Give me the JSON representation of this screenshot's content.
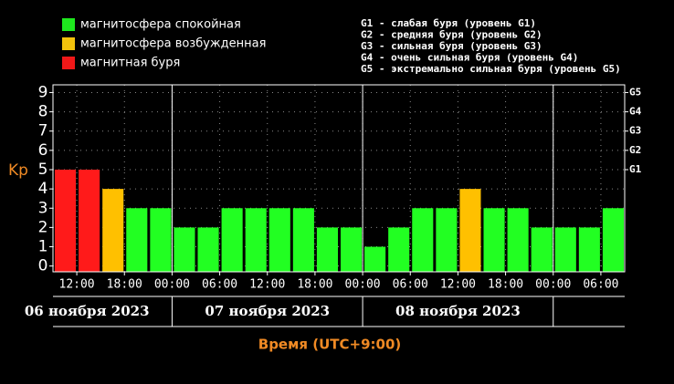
{
  "chart_data": {
    "type": "bar",
    "legend": [
      {
        "label": "магнитосфера спокойная",
        "color": "#1ee81e"
      },
      {
        "label": "магнитосфера возбужденная",
        "color": "#f2c20c"
      },
      {
        "label": "магнитная буря",
        "color": "#f01818"
      }
    ],
    "notes": [
      "G1 - слабая буря (уровень G1)",
      "G2 - средняя буря (уровень G2)",
      "G3 - сильная буря (уровень G3)",
      "G4 - очень сильная буря (уровень G4)",
      "G5 - экстремально сильная буря (уровень G5)"
    ],
    "ylabel": "Kp",
    "xlabel": "Время (UTC+9:00)",
    "values": [
      5,
      5,
      4,
      3,
      3,
      2,
      2,
      3,
      3,
      3,
      3,
      2,
      2,
      1,
      2,
      3,
      3,
      4,
      3,
      3,
      2,
      2,
      2,
      3
    ],
    "colors": [
      "#ff1a1a",
      "#ff1a1a",
      "#ffc000",
      "#22ff22",
      "#22ff22",
      "#22ff22",
      "#22ff22",
      "#22ff22",
      "#22ff22",
      "#22ff22",
      "#22ff22",
      "#22ff22",
      "#22ff22",
      "#22ff22",
      "#22ff22",
      "#22ff22",
      "#22ff22",
      "#ffc000",
      "#22ff22",
      "#22ff22",
      "#22ff22",
      "#22ff22",
      "#22ff22",
      "#22ff22"
    ],
    "xlim": [
      0,
      24
    ],
    "xticks": [
      {
        "value": 1,
        "label": "12:00"
      },
      {
        "value": 3,
        "label": "18:00"
      },
      {
        "value": 5,
        "label": "00:00"
      },
      {
        "value": 7,
        "label": "06:00"
      },
      {
        "value": 9,
        "label": "12:00"
      },
      {
        "value": 11,
        "label": "18:00"
      },
      {
        "value": 13,
        "label": "00:00"
      },
      {
        "value": 15,
        "label": "06:00"
      },
      {
        "value": 17,
        "label": "12:00"
      },
      {
        "value": 19,
        "label": "18:00"
      },
      {
        "value": 21,
        "label": "00:00"
      },
      {
        "value": 23,
        "label": "06:00"
      }
    ],
    "days": [
      {
        "label": "06 ноября 2023",
        "from": 0,
        "to": 5
      },
      {
        "label": "07 ноября 2023",
        "from": 5,
        "to": 13
      },
      {
        "label": "08 ноября 2023",
        "from": 13,
        "to": 21
      }
    ],
    "ylim": [
      -0.3,
      9.4
    ],
    "yticks": [
      0,
      1,
      2,
      3,
      4,
      5,
      6,
      7,
      8,
      9
    ],
    "y2ticks": [
      {
        "value": 5,
        "label": "G1"
      },
      {
        "value": 6,
        "label": "G2"
      },
      {
        "value": 7,
        "label": "G3"
      },
      {
        "value": 8,
        "label": "G4"
      },
      {
        "value": 9,
        "label": "G5"
      }
    ],
    "grid": true
  }
}
